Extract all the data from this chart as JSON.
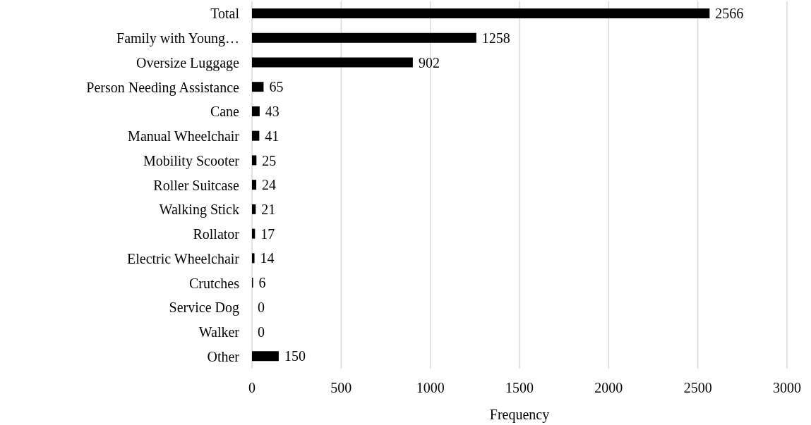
{
  "chart_data": {
    "type": "bar",
    "orientation": "horizontal",
    "xlabel": "Frequency",
    "categories": [
      "Total",
      "Family with Young…",
      "Oversize Luggage",
      "Person Needing Assistance",
      "Cane",
      "Manual Wheelchair",
      "Mobility Scooter",
      "Roller Suitcase",
      "Walking Stick",
      "Rollator",
      "Electric Wheelchair",
      "Crutches",
      "Service Dog",
      "Walker",
      "Other"
    ],
    "values": [
      2566,
      1258,
      902,
      65,
      43,
      41,
      25,
      24,
      21,
      17,
      14,
      6,
      0,
      0,
      150
    ],
    "color": "#000000",
    "xlim": [
      0,
      3000
    ],
    "xticks": [
      0,
      500,
      1000,
      1500,
      2000,
      2500,
      3000
    ],
    "grid": "x",
    "data_labels": true
  }
}
